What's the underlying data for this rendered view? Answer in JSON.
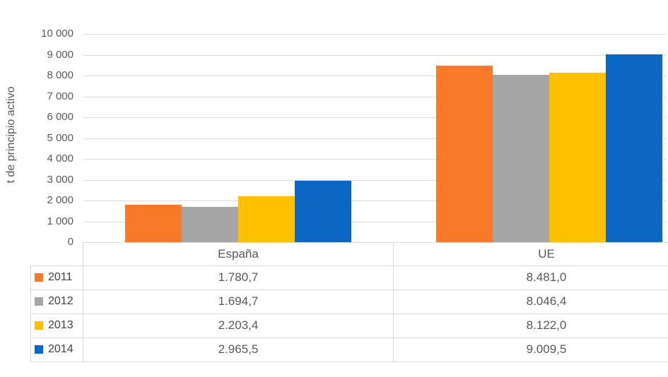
{
  "chart_data": {
    "type": "bar",
    "title": "",
    "ylabel": "t de principio activo",
    "xlabel": "",
    "categories": [
      "España",
      "UE"
    ],
    "series": [
      {
        "name": "2011",
        "color": "#f87a28",
        "values": [
          1780.7,
          8481.0
        ]
      },
      {
        "name": "2012",
        "color": "#a6a6a6",
        "values": [
          1694.7,
          8046.4
        ]
      },
      {
        "name": "2013",
        "color": "#ffc000",
        "values": [
          2203.4,
          8122.0
        ]
      },
      {
        "name": "2014",
        "color": "#0b66c4",
        "values": [
          2965.5,
          9009.5
        ]
      }
    ],
    "ylim": [
      0,
      10000
    ],
    "ytick_step": 1000,
    "ytick_labels": [
      "0",
      "1 000",
      "2 000",
      "3 000",
      "4 000",
      "5 000",
      "6 000",
      "7 000",
      "8 000",
      "9 000",
      "10 000"
    ],
    "grid": true,
    "legend_position": "table-left-column"
  },
  "data_table": {
    "columns": [
      "España",
      "UE"
    ],
    "rows": [
      {
        "year": "2011",
        "swatch_color": "#f87a28",
        "values": [
          "1.780,7",
          "8.481,0"
        ]
      },
      {
        "year": "2012",
        "swatch_color": "#a6a6a6",
        "values": [
          "1.694,7",
          "8.046,4"
        ]
      },
      {
        "year": "2013",
        "swatch_color": "#ffc000",
        "values": [
          "2.203,4",
          "8.122,0"
        ]
      },
      {
        "year": "2014",
        "swatch_color": "#0b66c4",
        "values": [
          "2.965,5",
          "9.009,5"
        ]
      }
    ]
  },
  "colors": {
    "gridline": "#d9d9d9",
    "table_border": "#d9d9d9",
    "axis_text": "#595959",
    "table_text": "#595959",
    "legend_text": "#404040",
    "background": "#ffffff"
  }
}
